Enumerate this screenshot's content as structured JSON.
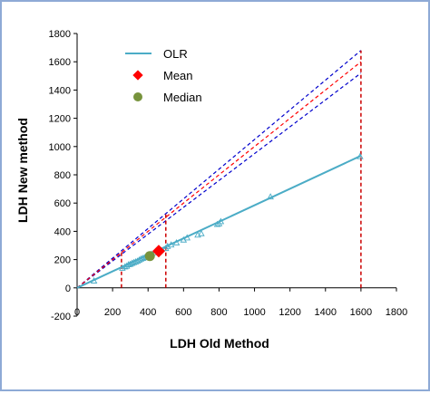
{
  "chart_data": {
    "type": "scatter",
    "xlabel": "LDH Old Method",
    "ylabel": "LDH New method",
    "xlim": [
      0,
      1800
    ],
    "ylim": [
      -200,
      1800
    ],
    "xticks": [
      "0",
      "200",
      "400",
      "600",
      "800",
      "1000",
      "1200",
      "1400",
      "1600",
      "1800"
    ],
    "yticks": [
      "-200",
      "0",
      "200",
      "400",
      "600",
      "800",
      "1000",
      "1200",
      "1400",
      "1600",
      "1800"
    ],
    "grid": false,
    "legend_position": "top-left",
    "legend": {
      "olr": "OLR",
      "mean": "Mean",
      "median": "Median"
    },
    "colors": {
      "olr": "#4bacc6",
      "points": "#4bacc6",
      "mean": "#ff0000",
      "median": "#77933c",
      "identity": "#ff0000",
      "bounds": "#0000cc",
      "verticals": "#cc0000",
      "frame": "#8eaad6"
    },
    "olr_line": {
      "x": [
        0,
        1600
      ],
      "y": [
        0,
        935
      ]
    },
    "identity_line": {
      "x": [
        0,
        1600
      ],
      "y": [
        0,
        1600
      ]
    },
    "upper_bound_line": {
      "x": [
        0,
        1600
      ],
      "y": [
        0,
        1680
      ]
    },
    "lower_bound_line": {
      "x": [
        0,
        1600
      ],
      "y": [
        0,
        1520
      ]
    },
    "vertical_lines_x": [
      250,
      500,
      1600
    ],
    "mean": {
      "x": 460,
      "y": 260
    },
    "median": {
      "x": 410,
      "y": 225
    },
    "points": [
      {
        "x": 95,
        "y": 50
      },
      {
        "x": 255,
        "y": 140
      },
      {
        "x": 270,
        "y": 150
      },
      {
        "x": 280,
        "y": 155
      },
      {
        "x": 290,
        "y": 165
      },
      {
        "x": 300,
        "y": 168
      },
      {
        "x": 310,
        "y": 175
      },
      {
        "x": 320,
        "y": 180
      },
      {
        "x": 330,
        "y": 185
      },
      {
        "x": 340,
        "y": 190
      },
      {
        "x": 350,
        "y": 198
      },
      {
        "x": 360,
        "y": 205
      },
      {
        "x": 370,
        "y": 210
      },
      {
        "x": 380,
        "y": 215
      },
      {
        "x": 390,
        "y": 220
      },
      {
        "x": 400,
        "y": 228
      },
      {
        "x": 420,
        "y": 240
      },
      {
        "x": 440,
        "y": 250
      },
      {
        "x": 470,
        "y": 268
      },
      {
        "x": 500,
        "y": 280
      },
      {
        "x": 510,
        "y": 295
      },
      {
        "x": 530,
        "y": 305
      },
      {
        "x": 560,
        "y": 320
      },
      {
        "x": 600,
        "y": 340
      },
      {
        "x": 620,
        "y": 355
      },
      {
        "x": 680,
        "y": 375
      },
      {
        "x": 700,
        "y": 385
      },
      {
        "x": 790,
        "y": 450
      },
      {
        "x": 800,
        "y": 455
      },
      {
        "x": 810,
        "y": 470
      },
      {
        "x": 1090,
        "y": 645
      },
      {
        "x": 1595,
        "y": 930
      }
    ]
  }
}
